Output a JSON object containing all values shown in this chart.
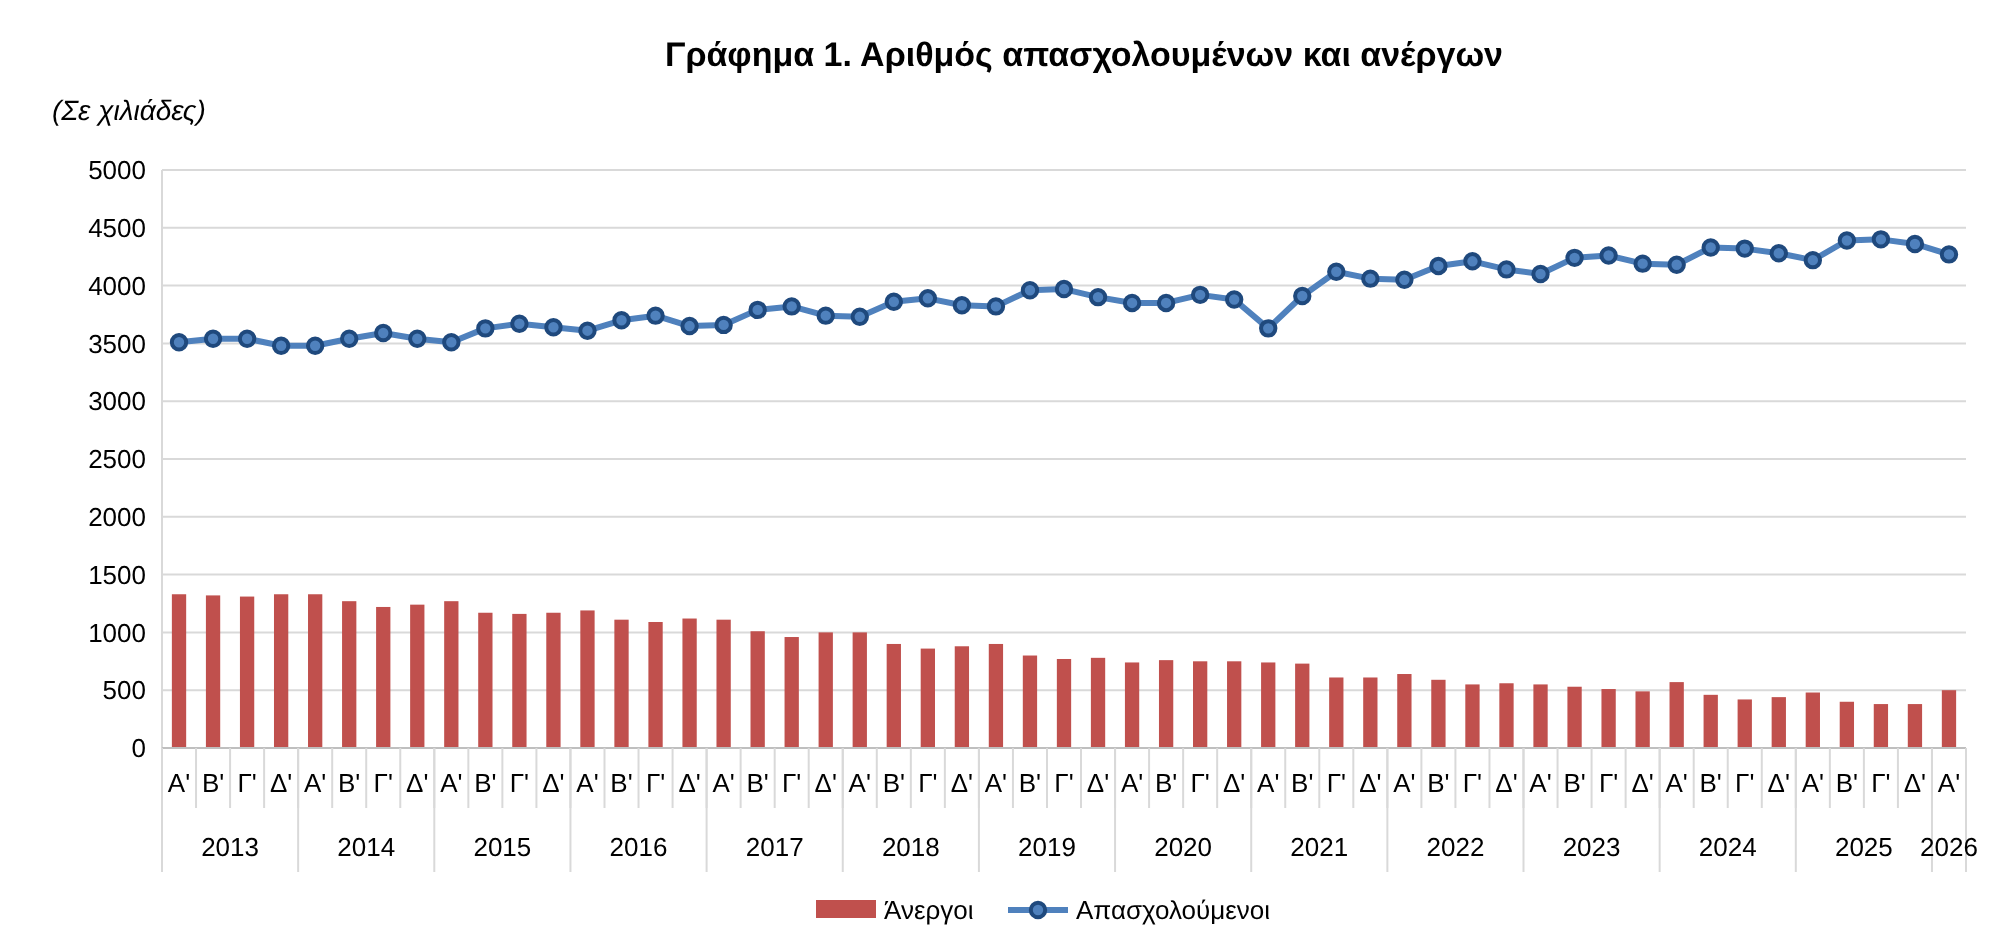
{
  "chart_data": {
    "type": "bar",
    "title": "Γράφημα 1. Αριθμός απασχολουμένων και ανέργων",
    "ylabel": "(Σε χιλιάδες)",
    "categories": [
      "Α'",
      "Β'",
      "Γ'",
      "Δ'",
      "Α'",
      "Β'",
      "Γ'",
      "Δ'",
      "Α'",
      "Β'",
      "Γ'",
      "Δ'",
      "Α'",
      "Β'",
      "Γ'",
      "Δ'",
      "Α'",
      "Β'",
      "Γ'",
      "Δ'",
      "Α'",
      "Β'",
      "Γ'",
      "Δ'",
      "Α'",
      "Β'",
      "Γ'",
      "Δ'",
      "Α'",
      "Β'",
      "Γ'",
      "Δ'",
      "Α'",
      "Β'",
      "Γ'",
      "Δ'",
      "Α'",
      "Β'",
      "Γ'",
      "Δ'",
      "Α'",
      "Β'",
      "Γ'",
      "Δ'",
      "Α'",
      "Β'",
      "Γ'",
      "Δ'",
      "Α'",
      "Β'",
      "Γ'",
      "Δ'",
      "Α'"
    ],
    "annotations": [
      "2013",
      "2014",
      "2015",
      "2016",
      "2017",
      "2018",
      "2019",
      "2020",
      "2021",
      "2022",
      "2023",
      "2024",
      "2025",
      "2026"
    ],
    "series": [
      {
        "name": "Άνεργοι",
        "color": "#c0504d",
        "values": [
          1330,
          1320,
          1310,
          1330,
          1330,
          1270,
          1220,
          1240,
          1270,
          1170,
          1160,
          1170,
          1190,
          1110,
          1090,
          1120,
          1110,
          1010,
          960,
          1000,
          1000,
          900,
          860,
          880,
          900,
          800,
          770,
          780,
          740,
          760,
          750,
          750,
          740,
          730,
          610,
          610,
          640,
          590,
          550,
          560,
          550,
          530,
          510,
          490,
          570,
          460,
          420,
          440,
          480,
          400,
          380,
          380,
          500
        ]
      },
      {
        "name": "Απασχολούμενοι",
        "type": "line",
        "color": "#4f81bd",
        "values": [
          3510,
          3540,
          3540,
          3480,
          3480,
          3540,
          3590,
          3540,
          3510,
          3630,
          3670,
          3640,
          3610,
          3700,
          3740,
          3650,
          3660,
          3790,
          3820,
          3740,
          3730,
          3860,
          3890,
          3830,
          3820,
          3960,
          3970,
          3900,
          3850,
          3850,
          3920,
          3880,
          3630,
          3910,
          4120,
          4060,
          4050,
          4170,
          4210,
          4140,
          4100,
          4240,
          4260,
          4190,
          4180,
          4330,
          4320,
          4280,
          4220,
          4390,
          4400,
          4360,
          4270
        ]
      }
    ],
    "ylim": [
      0,
      5000
    ],
    "yticks": [
      0,
      500,
      1000,
      1500,
      2000,
      2500,
      3000,
      3500,
      4000,
      4500,
      5000
    ],
    "grid": "y",
    "legend": "bottom",
    "marker": "circle",
    "line_style": "solid"
  }
}
